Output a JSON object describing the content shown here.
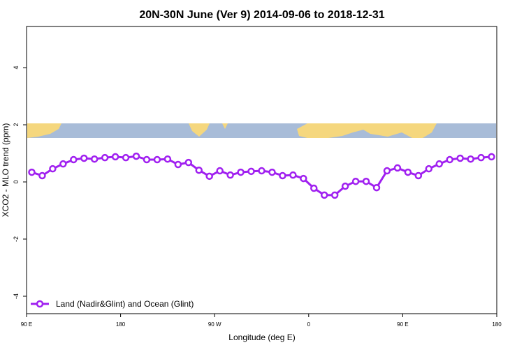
{
  "chart_data": {
    "type": "line",
    "title": "20N-30N June (Ver 9)   2014-09-06 to 2018-12-31",
    "x_label": "Longitude (deg E)",
    "y_label": "XCO2 - MLO trend (ppm)",
    "x": [
      95,
      105,
      115,
      125,
      135,
      145,
      155,
      165,
      175,
      185,
      195,
      205,
      215,
      225,
      235,
      245,
      255,
      265,
      275,
      285,
      295,
      305,
      315,
      325,
      335,
      345,
      355,
      365,
      375,
      385,
      395,
      405,
      415,
      425,
      435,
      445,
      455,
      465,
      475,
      485,
      495,
      505,
      515,
      525,
      535
    ],
    "series": [
      {
        "name": "Land (Nadir&Glint) and Ocean (Glint)",
        "color": "#a020f0",
        "values": [
          0.34,
          0.22,
          0.46,
          0.63,
          0.78,
          0.83,
          0.8,
          0.85,
          0.88,
          0.85,
          0.9,
          0.78,
          0.78,
          0.8,
          0.61,
          0.68,
          0.41,
          0.2,
          0.39,
          0.24,
          0.34,
          0.37,
          0.39,
          0.34,
          0.22,
          0.24,
          0.12,
          -0.22,
          -0.46,
          -0.46,
          -0.15,
          0.02,
          0.02,
          -0.2,
          0.39,
          0.49,
          0.34,
          0.22,
          0.46,
          0.63,
          0.78,
          0.83,
          0.8,
          0.85,
          0.88
        ]
      }
    ],
    "xlim": [
      90,
      540
    ],
    "xticks": [
      {
        "value": 90,
        "label": "90 E"
      },
      180,
      {
        "value": 270,
        "label": "90 W"
      },
      {
        "value": 360,
        "label": "0"
      },
      {
        "value": 450,
        "label": "90 E"
      },
      {
        "value": 540,
        "label": "180"
      }
    ],
    "ylim": [
      -4.61,
      5.44
    ],
    "yticks": [
      -4,
      -2,
      0,
      2,
      4
    ],
    "legend": "bottom-left"
  }
}
